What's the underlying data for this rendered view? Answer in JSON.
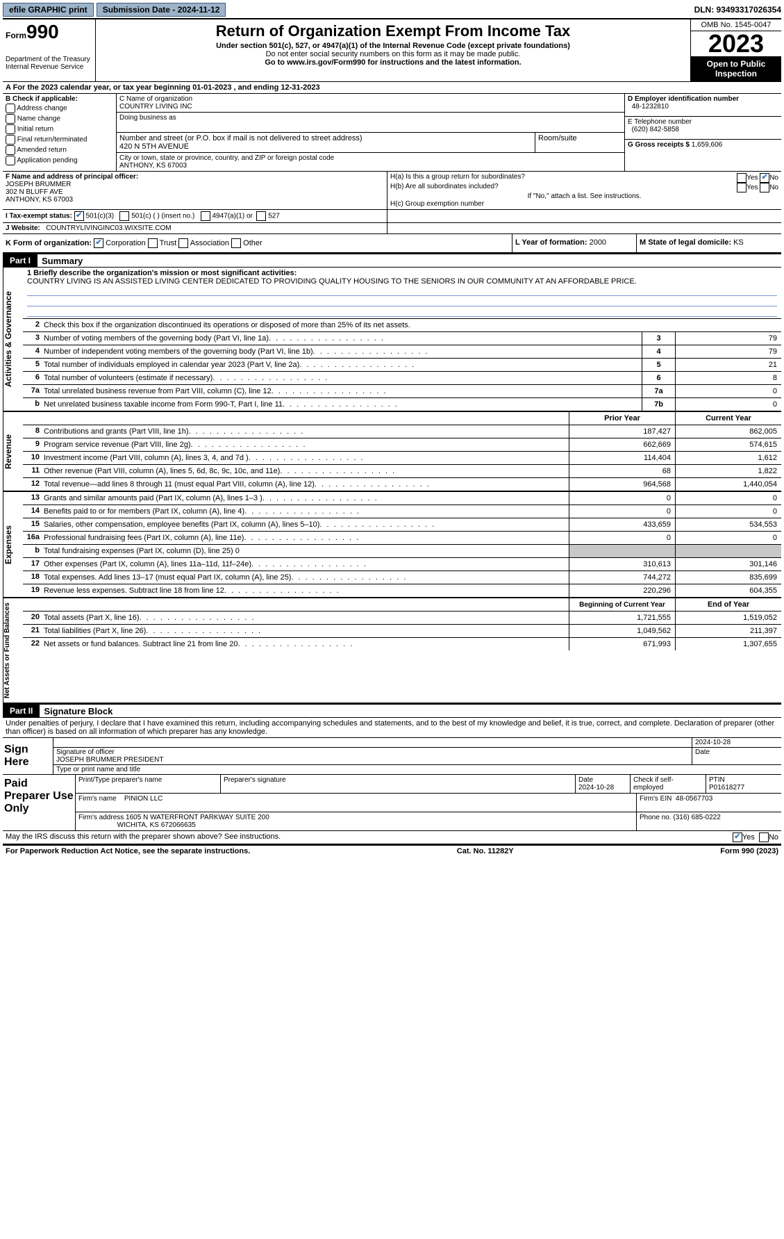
{
  "topbar": {
    "efile": "efile GRAPHIC print",
    "submission_label": "Submission Date - 2024-11-12",
    "dln_label": "DLN: 93493317026354"
  },
  "header": {
    "form_prefix": "Form",
    "form_number": "990",
    "dept": "Department of the Treasury\nInternal Revenue Service",
    "title": "Return of Organization Exempt From Income Tax",
    "subtitle": "Under section 501(c), 527, or 4947(a)(1) of the Internal Revenue Code (except private foundations)",
    "ssn_note": "Do not enter social security numbers on this form as it may be made public.",
    "goto": "Go to www.irs.gov/Form990 for instructions and the latest information.",
    "omb": "OMB No. 1545-0047",
    "year": "2023",
    "inspection": "Open to Public Inspection"
  },
  "line_a": "A For the 2023 calendar year, or tax year beginning 01-01-2023    , and ending 12-31-2023",
  "box_b": {
    "label": "B Check if applicable:",
    "items": [
      "Address change",
      "Name change",
      "Initial return",
      "Final return/terminated",
      "Amended return",
      "Application pending"
    ]
  },
  "box_c": {
    "name_label": "C Name of organization",
    "name": "COUNTRY LIVING INC",
    "dba_label": "Doing business as",
    "addr_label": "Number and street (or P.O. box if mail is not delivered to street address)",
    "addr": "420 N 5TH AVENUE",
    "room_label": "Room/suite",
    "city_label": "City or town, state or province, country, and ZIP or foreign postal code",
    "city": "ANTHONY, KS  67003"
  },
  "box_d": {
    "label": "D Employer identification number",
    "value": "48-1232810"
  },
  "box_e": {
    "label": "E Telephone number",
    "value": "(620) 842-5858"
  },
  "box_g": {
    "label": "G Gross receipts $",
    "value": "1,659,606"
  },
  "box_f": {
    "label": "F Name and address of principal officer:",
    "name": "JOSEPH BRUMMER",
    "addr1": "302 N BLUFF AVE",
    "addr2": "ANTHONY, KS  67003"
  },
  "box_h": {
    "a": "H(a)  Is this a group return for subordinates?",
    "b": "H(b)  Are all subordinates included?",
    "note": "If \"No,\" attach a list. See instructions.",
    "c": "H(c)  Group exemption number"
  },
  "box_i": {
    "label": "I   Tax-exempt status:",
    "opt1": "501(c)(3)",
    "opt2": "501(c) (  ) (insert no.)",
    "opt3": "4947(a)(1) or",
    "opt4": "527"
  },
  "box_j": {
    "label": "J   Website:",
    "value": "COUNTRYLIVINGINC03.WIXSITE.COM"
  },
  "box_k": {
    "label": "K Form of organization:",
    "opts": [
      "Corporation",
      "Trust",
      "Association",
      "Other"
    ]
  },
  "box_l": {
    "label": "L Year of formation:",
    "value": "2000"
  },
  "box_m": {
    "label": "M State of legal domicile:",
    "value": "KS"
  },
  "part1": {
    "hdr": "Part I",
    "title": "Summary",
    "mission_label": "1  Briefly describe the organization's mission or most significant activities:",
    "mission": "COUNTRY LIVING IS AN ASSISTED LIVING CENTER DEDICATED TO PROVIDING QUALITY HOUSING TO THE SENIORS IN OUR COMMUNITY AT AN AFFORDABLE PRICE.",
    "line2": "Check this box       if the organization discontinued its operations or disposed of more than 25% of its net assets.",
    "side_ag": "Activities & Governance",
    "side_rev": "Revenue",
    "side_exp": "Expenses",
    "side_na": "Net Assets or Fund Balances",
    "lines_ag": [
      {
        "n": "3",
        "d": "Number of voting members of the governing body (Part VI, line 1a)",
        "k": "3",
        "v": "79"
      },
      {
        "n": "4",
        "d": "Number of independent voting members of the governing body (Part VI, line 1b)",
        "k": "4",
        "v": "79"
      },
      {
        "n": "5",
        "d": "Total number of individuals employed in calendar year 2023 (Part V, line 2a)",
        "k": "5",
        "v": "21"
      },
      {
        "n": "6",
        "d": "Total number of volunteers (estimate if necessary)",
        "k": "6",
        "v": "8"
      },
      {
        "n": "7a",
        "d": "Total unrelated business revenue from Part VIII, column (C), line 12",
        "k": "7a",
        "v": "0"
      },
      {
        "n": "b",
        "d": "Net unrelated business taxable income from Form 990-T, Part I, line 11",
        "k": "7b",
        "v": "0"
      }
    ],
    "col_hdr_prior": "Prior Year",
    "col_hdr_curr": "Current Year",
    "lines_rev": [
      {
        "n": "8",
        "d": "Contributions and grants (Part VIII, line 1h)",
        "p": "187,427",
        "c": "862,005"
      },
      {
        "n": "9",
        "d": "Program service revenue (Part VIII, line 2g)",
        "p": "662,669",
        "c": "574,615"
      },
      {
        "n": "10",
        "d": "Investment income (Part VIII, column (A), lines 3, 4, and 7d )",
        "p": "114,404",
        "c": "1,612"
      },
      {
        "n": "11",
        "d": "Other revenue (Part VIII, column (A), lines 5, 6d, 8c, 9c, 10c, and 11e)",
        "p": "68",
        "c": "1,822"
      },
      {
        "n": "12",
        "d": "Total revenue—add lines 8 through 11 (must equal Part VIII, column (A), line 12)",
        "p": "964,568",
        "c": "1,440,054"
      }
    ],
    "lines_exp": [
      {
        "n": "13",
        "d": "Grants and similar amounts paid (Part IX, column (A), lines 1–3 )",
        "p": "0",
        "c": "0"
      },
      {
        "n": "14",
        "d": "Benefits paid to or for members (Part IX, column (A), line 4)",
        "p": "0",
        "c": "0"
      },
      {
        "n": "15",
        "d": "Salaries, other compensation, employee benefits (Part IX, column (A), lines 5–10)",
        "p": "433,659",
        "c": "534,553"
      },
      {
        "n": "16a",
        "d": "Professional fundraising fees (Part IX, column (A), line 11e)",
        "p": "0",
        "c": "0"
      },
      {
        "n": "b",
        "d": "Total fundraising expenses (Part IX, column (D), line 25) 0",
        "grey": true
      },
      {
        "n": "17",
        "d": "Other expenses (Part IX, column (A), lines 11a–11d, 11f–24e)",
        "p": "310,613",
        "c": "301,146"
      },
      {
        "n": "18",
        "d": "Total expenses. Add lines 13–17 (must equal Part IX, column (A), line 25)",
        "p": "744,272",
        "c": "835,699"
      },
      {
        "n": "19",
        "d": "Revenue less expenses. Subtract line 18 from line 12",
        "p": "220,296",
        "c": "604,355"
      }
    ],
    "col_hdr_beg": "Beginning of Current Year",
    "col_hdr_end": "End of Year",
    "lines_na": [
      {
        "n": "20",
        "d": "Total assets (Part X, line 16)",
        "p": "1,721,555",
        "c": "1,519,052"
      },
      {
        "n": "21",
        "d": "Total liabilities (Part X, line 26)",
        "p": "1,049,562",
        "c": "211,397"
      },
      {
        "n": "22",
        "d": "Net assets or fund balances. Subtract line 21 from line 20",
        "p": "671,993",
        "c": "1,307,655"
      }
    ]
  },
  "part2": {
    "hdr": "Part II",
    "title": "Signature Block",
    "decl": "Under penalties of perjury, I declare that I have examined this return, including accompanying schedules and statements, and to the best of my knowledge and belief, it is true, correct, and complete. Declaration of preparer (other than officer) is based on all information of which preparer has any knowledge.",
    "sign_here": "Sign Here",
    "sig_officer": "Signature of officer",
    "sig_date": "2024-10-28",
    "officer_name": "JOSEPH BRUMMER PRESIDENT",
    "type_name": "Type or print name and title",
    "paid_label": "Paid Preparer Use Only",
    "prep_name_label": "Print/Type preparer's name",
    "prep_sig_label": "Preparer's signature",
    "prep_date_label": "Date",
    "prep_date": "2024-10-28",
    "prep_check": "Check        if self-employed",
    "ptin_label": "PTIN",
    "ptin": "P01618277",
    "firm_name_label": "Firm's name",
    "firm_name": "PINION LLC",
    "firm_ein_label": "Firm's EIN",
    "firm_ein": "48-0567703",
    "firm_addr_label": "Firm's address",
    "firm_addr1": "1605 N WATERFRONT PARKWAY SUITE 200",
    "firm_addr2": "WICHITA, KS  672066635",
    "phone_label": "Phone no.",
    "phone": "(316) 685-0222",
    "discuss": "May the IRS discuss this return with the preparer shown above? See instructions."
  },
  "footer": {
    "left": "For Paperwork Reduction Act Notice, see the separate instructions.",
    "mid": "Cat. No. 11282Y",
    "right": "Form 990 (2023)"
  }
}
